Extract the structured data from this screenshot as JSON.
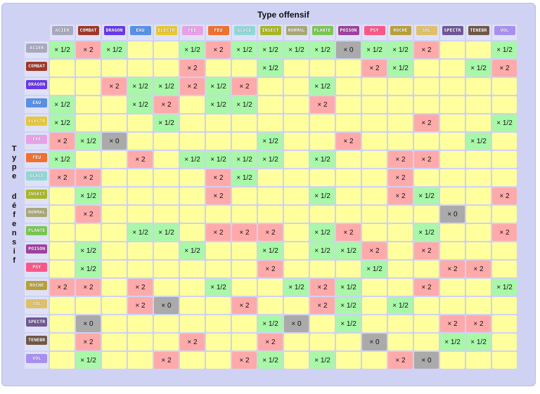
{
  "header": {
    "title": "Type offensif"
  },
  "side_label": "Type défensif",
  "types": [
    {
      "label": "ACIER",
      "color": "#a8a8c0"
    },
    {
      "label": "COMBAT",
      "color": "#a03828"
    },
    {
      "label": "DRAGON",
      "color": "#6838e8"
    },
    {
      "label": "EAU",
      "color": "#5890e8"
    },
    {
      "label": "ELECTR",
      "color": "#e8c830"
    },
    {
      "label": "FEE",
      "color": "#e8a0e8"
    },
    {
      "label": "FEU",
      "color": "#f07030"
    },
    {
      "label": "GLACE",
      "color": "#90d8d8"
    },
    {
      "label": "INSECT",
      "color": "#a8b820"
    },
    {
      "label": "NORMAL",
      "color": "#a8a878"
    },
    {
      "label": "PLANTE",
      "color": "#78c850"
    },
    {
      "label": "POISON",
      "color": "#a040a0"
    },
    {
      "label": "PSY",
      "color": "#f85888"
    },
    {
      "label": "ROCHE",
      "color": "#b8a038"
    },
    {
      "label": "SOL",
      "color": "#e0c068"
    },
    {
      "label": "SPECTR",
      "color": "#705898"
    },
    {
      "label": "TENEBR",
      "color": "#705848"
    },
    {
      "label": "VOL",
      "color": "#a890f0"
    }
  ],
  "matrix": [
    [
      "× 1/2",
      "× 2",
      "× 1/2",
      "",
      "",
      "× 1/2",
      "× 2",
      "× 1/2",
      "× 1/2",
      "× 1/2",
      "× 1/2",
      "× 0",
      "× 1/2",
      "× 1/2",
      "× 2",
      "",
      "",
      "× 1/2"
    ],
    [
      "",
      "",
      "",
      "",
      "",
      "× 2",
      "",
      "",
      "× 1/2",
      "",
      "",
      "",
      "× 2",
      "× 1/2",
      "",
      "",
      "× 1/2",
      "× 2"
    ],
    [
      "",
      "",
      "× 2",
      "× 1/2",
      "× 1/2",
      "× 2",
      "× 1/2",
      "× 2",
      "",
      "",
      "× 1/2",
      "",
      "",
      "",
      "",
      "",
      "",
      ""
    ],
    [
      "× 1/2",
      "",
      "",
      "× 1/2",
      "× 2",
      "",
      "× 1/2",
      "× 1/2",
      "",
      "",
      "× 2",
      "",
      "",
      "",
      "",
      "",
      "",
      ""
    ],
    [
      "× 1/2",
      "",
      "",
      "",
      "× 1/2",
      "",
      "",
      "",
      "",
      "",
      "",
      "",
      "",
      "",
      "× 2",
      "",
      "",
      "× 1/2"
    ],
    [
      "× 2",
      "× 1/2",
      "× 0",
      "",
      "",
      "",
      "",
      "",
      "× 1/2",
      "",
      "",
      "× 2",
      "",
      "",
      "",
      "",
      "× 1/2",
      ""
    ],
    [
      "× 1/2",
      "",
      "",
      "× 2",
      "",
      "× 1/2",
      "× 1/2",
      "× 1/2",
      "× 1/2",
      "",
      "× 1/2",
      "",
      "",
      "× 2",
      "× 2",
      "",
      "",
      ""
    ],
    [
      "× 2",
      "× 2",
      "",
      "",
      "",
      "",
      "× 2",
      "× 1/2",
      "",
      "",
      "",
      "",
      "",
      "× 2",
      "",
      "",
      "",
      ""
    ],
    [
      "",
      "× 1/2",
      "",
      "",
      "",
      "",
      "× 2",
      "",
      "",
      "",
      "× 1/2",
      "",
      "",
      "× 2",
      "× 1/2",
      "",
      "",
      "× 2"
    ],
    [
      "",
      "× 2",
      "",
      "",
      "",
      "",
      "",
      "",
      "",
      "",
      "",
      "",
      "",
      "",
      "",
      "× 0",
      "",
      ""
    ],
    [
      "",
      "",
      "",
      "× 1/2",
      "× 1/2",
      "",
      "× 2",
      "× 2",
      "× 2",
      "",
      "× 1/2",
      "× 2",
      "",
      "",
      "× 1/2",
      "",
      "",
      "× 2"
    ],
    [
      "",
      "× 1/2",
      "",
      "",
      "",
      "× 1/2",
      "",
      "",
      "× 1/2",
      "",
      "× 1/2",
      "× 1/2",
      "× 2",
      "",
      "× 2",
      "",
      "",
      ""
    ],
    [
      "",
      "× 1/2",
      "",
      "",
      "",
      "",
      "",
      "",
      "× 2",
      "",
      "",
      "",
      "× 1/2",
      "",
      "",
      "× 2",
      "× 2",
      ""
    ],
    [
      "× 2",
      "× 2",
      "",
      "× 2",
      "",
      "",
      "× 1/2",
      "",
      "",
      "× 1/2",
      "× 2",
      "× 1/2",
      "",
      "",
      "× 2",
      "",
      "",
      "× 1/2"
    ],
    [
      "",
      "",
      "",
      "× 2",
      "× 0",
      "",
      "",
      "× 2",
      "",
      "",
      "× 2",
      "× 1/2",
      "",
      "× 1/2",
      "",
      "",
      "",
      ""
    ],
    [
      "",
      "× 0",
      "",
      "",
      "",
      "",
      "",
      "",
      "× 1/2",
      "× 0",
      "",
      "× 1/2",
      "",
      "",
      "",
      "× 2",
      "× 2",
      ""
    ],
    [
      "",
      "× 2",
      "",
      "",
      "",
      "× 2",
      "",
      "",
      "× 2",
      "",
      "",
      "",
      "× 0",
      "",
      "",
      "× 1/2",
      "× 1/2",
      ""
    ],
    [
      "",
      "× 1/2",
      "",
      "",
      "× 2",
      "",
      "",
      "× 2",
      "× 1/2",
      "",
      "× 1/2",
      "",
      "",
      "× 2",
      "× 0",
      "",
      "",
      ""
    ]
  ]
}
